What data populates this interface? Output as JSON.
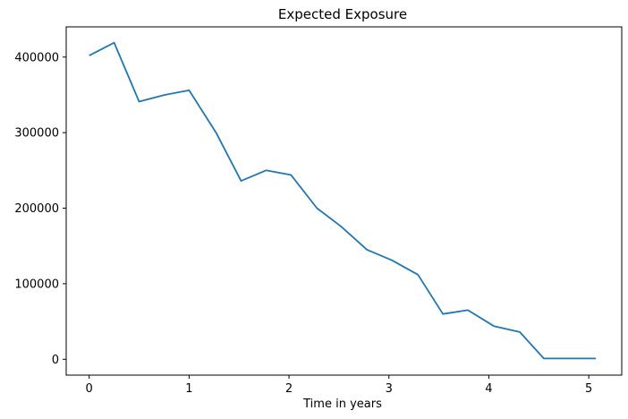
{
  "chart_data": {
    "type": "line",
    "title": "Expected Exposure",
    "xlabel": "Time in years",
    "ylabel": "",
    "xlim": [
      -0.23,
      5.33
    ],
    "ylim": [
      -21000,
      440000
    ],
    "x_ticks": [
      0,
      1,
      2,
      3,
      4,
      5
    ],
    "x_tick_labels": [
      "0",
      "1",
      "2",
      "3",
      "4",
      "5"
    ],
    "y_ticks": [
      0,
      100000,
      200000,
      300000,
      400000
    ],
    "y_tick_labels": [
      "0",
      "100000",
      "200000",
      "300000",
      "400000"
    ],
    "grid": false,
    "series": [
      {
        "color": "#1f77b4",
        "x": [
          0,
          0.25,
          0.5,
          0.76,
          1.0,
          1.27,
          1.52,
          1.77,
          2.02,
          2.28,
          2.52,
          2.78,
          3.03,
          3.29,
          3.54,
          3.79,
          4.05,
          4.31,
          4.55,
          4.81,
          5.07
        ],
        "y": [
          402000,
          419000,
          341000,
          350000,
          356000,
          300000,
          236000,
          250000,
          244000,
          200000,
          176000,
          145000,
          131000,
          112000,
          60000,
          65000,
          44000,
          36000,
          1000,
          1000,
          1000
        ]
      }
    ]
  }
}
